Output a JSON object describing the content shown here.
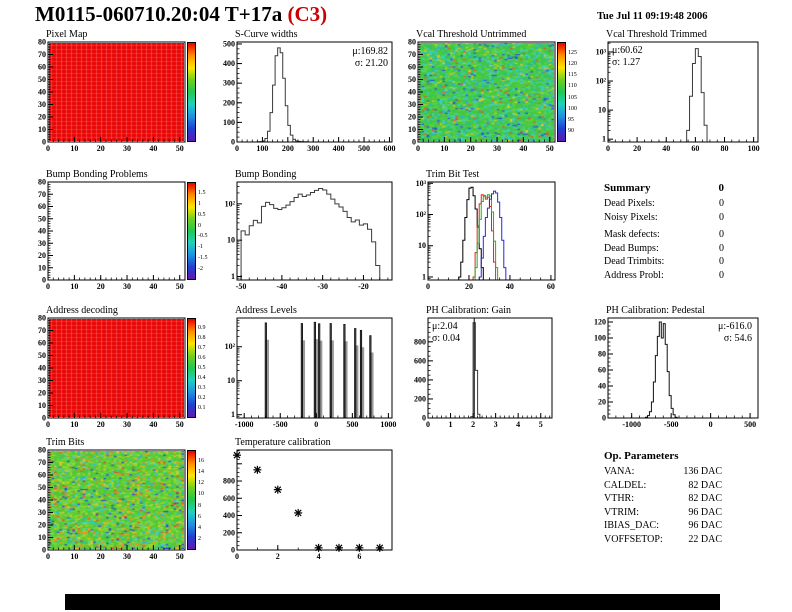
{
  "page": {
    "title": "M0115-060710.20:04 T+17a",
    "grade": "(C3)",
    "grade_color": "#cc0000",
    "datetime": "Tue Jul 11 09:19:48 2006"
  },
  "colorbar_colors": [
    "#e80000",
    "#ff8c00",
    "#ffe400",
    "#70d020",
    "#20c850",
    "#20d0c0",
    "#2090e0",
    "#2040d0",
    "#6018b0"
  ],
  "summary": {
    "heading": "Summary",
    "heading_value": "0",
    "rows": [
      {
        "label": "Dead Pixels:",
        "value": "0"
      },
      {
        "label": "Noisy Pixels:",
        "value": "0"
      },
      {
        "label": "Mask defects:",
        "value": "0",
        "gap": true
      },
      {
        "label": "Dead Bumps:",
        "value": "0"
      },
      {
        "label": "Dead Trimbits:",
        "value": "0"
      },
      {
        "label": "Address Probl:",
        "value": "0"
      }
    ]
  },
  "op_parameters": {
    "heading": "Op. Parameters",
    "rows": [
      {
        "label": "VANA:",
        "value": "136 DAC"
      },
      {
        "label": "CALDEL:",
        "value": "82 DAC"
      },
      {
        "label": "VTHR:",
        "value": "82 DAC"
      },
      {
        "label": "VTRIM:",
        "value": "96 DAC"
      },
      {
        "label": "IBIAS_DAC:",
        "value": "96 DAC"
      },
      {
        "label": "VOFFSETOP:",
        "value": "22 DAC"
      }
    ]
  },
  "chart_data": [
    {
      "id": "pixel-map",
      "type": "heatmap",
      "title": "Pixel Map",
      "map_style": "solid-red",
      "xlim": [
        0,
        52
      ],
      "xticks": [
        0,
        10,
        20,
        30,
        40,
        50
      ],
      "x_minor": 2,
      "ylim": [
        0,
        80
      ],
      "yticks": [
        0,
        10,
        20,
        30,
        40,
        50,
        60,
        70,
        80
      ],
      "y_minor": 2,
      "colorbar_labels": []
    },
    {
      "id": "scurve-widths",
      "type": "histogram",
      "title": "S-Curve widths",
      "stats": [
        "μ:169.82",
        "σ: 21.20"
      ],
      "line_color": "#3a3a3a",
      "xlim": [
        0,
        610
      ],
      "xticks": [
        0,
        100,
        200,
        300,
        400,
        500,
        600
      ],
      "x_minor": 20,
      "yscale": "linear",
      "ylim": [
        0,
        510
      ],
      "yticks": [
        0,
        100,
        200,
        300,
        400,
        500
      ],
      "y_minor": 25,
      "bins": {
        "start": 80,
        "width": 10,
        "counts": [
          1,
          2,
          6,
          18,
          55,
          150,
          290,
          440,
          480,
          455,
          325,
          185,
          85,
          35,
          14,
          6,
          3,
          2,
          1,
          1
        ]
      }
    },
    {
      "id": "vcal-threshold-untrimmed",
      "type": "heatmap",
      "title": "Vcal Threshold Untrimmed",
      "map_style": "noise",
      "seed": 77,
      "palette": [
        {
          "color": "#45c83c",
          "upto": 0.4
        },
        {
          "color": "#5ed23a",
          "upto": 0.58
        },
        {
          "color": "#35c06a",
          "upto": 0.7
        },
        {
          "color": "#3ecfc0",
          "upto": 0.84
        },
        {
          "color": "#2fb0e0",
          "upto": 0.88
        },
        {
          "color": "#e2ca28",
          "upto": 0.915
        },
        {
          "color": "#e85028",
          "upto": 0.935
        },
        {
          "color": "#2850d8",
          "upto": 0.97
        },
        {
          "color": "#28b890",
          "upto": 1.0
        }
      ],
      "xlim": [
        0,
        52
      ],
      "xticks": [
        0,
        10,
        20,
        30,
        40,
        50
      ],
      "x_minor": 2,
      "ylim": [
        0,
        80
      ],
      "yticks": [
        0,
        10,
        20,
        30,
        40,
        50,
        60,
        70,
        80
      ],
      "y_minor": 2,
      "colorbar_labels": [
        "125",
        "120",
        "115",
        "110",
        "105",
        "100",
        "95",
        "90"
      ]
    },
    {
      "id": "vcal-threshold-trimmed",
      "type": "histogram",
      "title": "Vcal Threshold Trimmed",
      "stats": [
        "μ:60.62",
        "σ: 1.27"
      ],
      "line_color": "#3a3a3a",
      "xlim": [
        0,
        103
      ],
      "xticks": [
        0,
        20,
        40,
        60,
        80,
        100
      ],
      "x_minor": 5,
      "yscale": "log",
      "ylim": [
        0.8,
        2200
      ],
      "yticks": [
        1,
        10,
        100,
        1000
      ],
      "bins": {
        "start": 54,
        "width": 2,
        "counts": [
          2,
          30,
          400,
          1300,
          700,
          40,
          3
        ]
      }
    },
    {
      "id": "bump-bonding-problems",
      "type": "heatmap",
      "title": "Bump Bonding Problems",
      "map_style": "empty",
      "xlim": [
        0,
        52
      ],
      "xticks": [
        0,
        10,
        20,
        30,
        40,
        50
      ],
      "x_minor": 2,
      "ylim": [
        0,
        80
      ],
      "yticks": [
        0,
        10,
        20,
        30,
        40,
        50,
        60,
        70,
        80
      ],
      "y_minor": 2,
      "colorbar_labels": [
        "1.5",
        "1",
        "0.5",
        "0",
        "-0.5",
        "-1",
        "-1.5",
        "-2"
      ]
    },
    {
      "id": "bump-bonding",
      "type": "histogram",
      "title": "Bump Bonding",
      "line_color": "#3a3a3a",
      "xlim": [
        -51,
        -13
      ],
      "xticks": [
        -50,
        -40,
        -30,
        -20
      ],
      "x_minor": 2,
      "yscale": "log",
      "ylim": [
        0.8,
        400
      ],
      "yticks": [
        1,
        10,
        100
      ],
      "bins": {
        "start": -50,
        "width": 1,
        "counts": [
          18,
          14,
          25,
          35,
          30,
          85,
          110,
          95,
          75,
          70,
          78,
          92,
          115,
          150,
          185,
          160,
          175,
          205,
          235,
          265,
          240,
          185,
          135,
          100,
          82,
          62,
          42,
          32,
          36,
          26,
          28,
          20,
          9,
          2
        ]
      }
    },
    {
      "id": "trim-bit-test",
      "type": "multihistogram",
      "title": "Trim Bit Test",
      "xlim": [
        0,
        62
      ],
      "xticks": [
        0,
        20,
        40,
        60
      ],
      "x_minor": 5,
      "yscale": "log",
      "ylim": [
        0.8,
        1100
      ],
      "yticks": [
        1,
        10,
        100,
        1000
      ],
      "series": [
        {
          "name": "black",
          "color": "#000000",
          "bins": {
            "start": 15,
            "width": 1,
            "counts": [
              1,
              3,
              15,
              80,
              300,
              700,
              750,
              400,
              150,
              40,
              8,
              2
            ]
          }
        },
        {
          "name": "red",
          "color": "#e82020",
          "bins": {
            "start": 22,
            "width": 1,
            "counts": [
              1,
              6,
              45,
              220,
              430,
              390,
              310,
              360,
              180,
              30,
              3
            ]
          }
        },
        {
          "name": "green",
          "color": "#18b818",
          "bins": {
            "start": 23,
            "width": 1,
            "counts": [
              2,
              12,
              70,
              260,
              410,
              360,
              430,
              390,
              120,
              14,
              2
            ]
          }
        },
        {
          "name": "blue",
          "color": "#2828e0",
          "bins": {
            "start": 25,
            "width": 1,
            "counts": [
              1,
              4,
              20,
              80,
              160,
              310,
              460,
              560,
              490,
              250,
              80,
              15,
              2
            ]
          }
        }
      ]
    },
    {
      "id": "address-decoding",
      "type": "heatmap",
      "title": "Address decoding",
      "map_style": "solid-red",
      "xlim": [
        0,
        52
      ],
      "xticks": [
        0,
        10,
        20,
        30,
        40,
        50
      ],
      "x_minor": 2,
      "ylim": [
        0,
        80
      ],
      "yticks": [
        0,
        10,
        20,
        30,
        40,
        50,
        60,
        70,
        80
      ],
      "y_minor": 2,
      "colorbar_labels": [
        "0.9",
        "0.8",
        "0.7",
        "0.6",
        "0.5",
        "0.4",
        "0.3",
        "0.2",
        "0.1"
      ]
    },
    {
      "id": "address-levels",
      "type": "spikes",
      "title": "Address Levels",
      "line_color": "#111111",
      "shadow_color": "#999999",
      "xlim": [
        -1100,
        1050
      ],
      "xticks": [
        -1000,
        -500,
        0,
        500,
        1000
      ],
      "x_minor": 100,
      "yscale": "log",
      "ylim": [
        0.8,
        700
      ],
      "yticks": [
        1,
        10,
        100
      ],
      "spikes": [
        [
          -700,
          500
        ],
        [
          -200,
          480
        ],
        [
          -20,
          520
        ],
        [
          40,
          470
        ],
        [
          200,
          480
        ],
        [
          390,
          450
        ],
        [
          540,
          340
        ],
        [
          620,
          300
        ],
        [
          750,
          210
        ]
      ]
    },
    {
      "id": "ph-calibration-gain",
      "type": "histogram",
      "title": "PH Calibration: Gain",
      "stats": [
        "μ:2.04",
        "σ: 0.04"
      ],
      "line_color": "#3a3a3a",
      "vline": 2.05,
      "xlim": [
        0,
        5.5
      ],
      "xticks": [
        0,
        1,
        2,
        3,
        4,
        5
      ],
      "x_minor": 0.2,
      "yscale": "linear",
      "ylim": [
        0,
        1050
      ],
      "yticks": [
        0,
        200,
        400,
        600,
        800
      ],
      "y_minor": 50,
      "bins": {
        "start": 1.8,
        "width": 0.1,
        "counts": [
          1,
          15,
          1000,
          500,
          40,
          2
        ]
      }
    },
    {
      "id": "ph-calibration-pedestal",
      "type": "histogram",
      "title": "PH Calibration: Pedestal",
      "stats": [
        "μ:-616.0",
        "σ: 54.6"
      ],
      "line_color": "#111111",
      "xlim": [
        -1300,
        600
      ],
      "xticks": [
        -1000,
        -500,
        0,
        500
      ],
      "x_minor": 100,
      "yscale": "linear",
      "ylim": [
        0,
        125
      ],
      "yticks": [
        0,
        20,
        40,
        60,
        80,
        100,
        120
      ],
      "y_minor": 5,
      "bins": {
        "start": -825,
        "width": 25,
        "counts": [
          1,
          3,
          8,
          20,
          45,
          78,
          102,
          120,
          100,
          118,
          92,
          58,
          28,
          12,
          4,
          1
        ]
      }
    },
    {
      "id": "trim-bits",
      "type": "heatmap",
      "title": "Trim Bits",
      "map_style": "noise",
      "seed": 42,
      "palette": [
        {
          "color": "#4cc838",
          "upto": 0.38
        },
        {
          "color": "#66d434",
          "upto": 0.58
        },
        {
          "color": "#8cd830",
          "upto": 0.7
        },
        {
          "color": "#d8cc2c",
          "upto": 0.78
        },
        {
          "color": "#e89028",
          "upto": 0.845
        },
        {
          "color": "#e84828",
          "upto": 0.87
        },
        {
          "color": "#3ecfc0",
          "upto": 0.94
        },
        {
          "color": "#2fb0e0",
          "upto": 0.97
        },
        {
          "color": "#2848d8",
          "upto": 1.0
        }
      ],
      "xlim": [
        0,
        52
      ],
      "xticks": [
        0,
        10,
        20,
        30,
        40,
        50
      ],
      "x_minor": 2,
      "ylim": [
        0,
        80
      ],
      "yticks": [
        0,
        10,
        20,
        30,
        40,
        50,
        60,
        70,
        80
      ],
      "y_minor": 2,
      "colorbar_labels": [
        "16",
        "14",
        "12",
        "10",
        "8",
        "6",
        "4",
        "2"
      ]
    },
    {
      "id": "temperature-calibration",
      "type": "scatter",
      "title": "Temperature calibration",
      "marker_color": "#000000",
      "xlim": [
        0,
        7.6
      ],
      "xticks": [
        0,
        2,
        4,
        6
      ],
      "x_minor": 1,
      "yscale": "linear",
      "ylim": [
        0,
        1160
      ],
      "yticks": [
        0,
        200,
        400,
        600,
        800,
        1000
      ],
      "ytick_labels": [
        "0",
        "200",
        "400",
        "600",
        "800",
        ""
      ],
      "y_minor": 50,
      "points": [
        [
          0,
          1100
        ],
        [
          1,
          930
        ],
        [
          2,
          700
        ],
        [
          3,
          430
        ],
        [
          4,
          25
        ],
        [
          5,
          25
        ],
        [
          6,
          25
        ],
        [
          7,
          25
        ]
      ]
    }
  ]
}
